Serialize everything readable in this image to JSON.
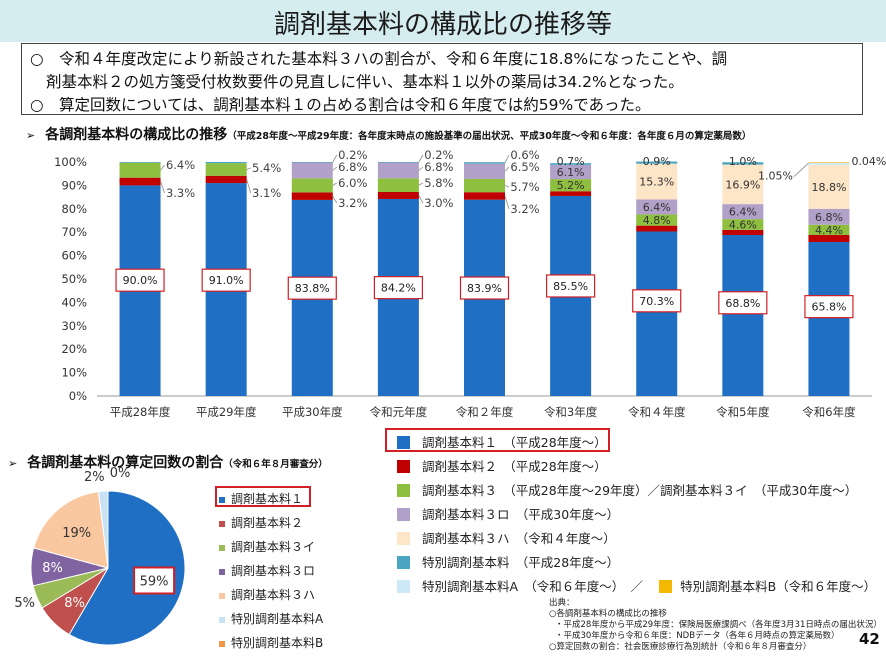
{
  "header": {
    "title": "調剤基本料の構成比の推移等"
  },
  "summary": {
    "line1": "○　令和４年度改定により新設された基本料３ハの割合が、令和６年度に18.8%になったことや、調",
    "line2": "剤基本料２の処方箋受付枚数要件の見直しに伴い、基本料１以外の薬局は34.2%となった。",
    "line3": "○　算定回数については、調剤基本料１の占める割合は令和６年度では約59%であった。"
  },
  "section_main": {
    "marker": "➢",
    "heading": "各調剤基本料の構成比の推移",
    "note": "（平成28年度～平成29年度：各年度末時点の施設基準の届出状況、平成30年度～令和６年度：各年度６月の算定薬局数）"
  },
  "section_pie": {
    "marker": "➢",
    "heading": "各調剤基本料の算定回数の割合",
    "note": "（令和６年８月審査分）"
  },
  "colors": {
    "kihon1": "#1f6fc5",
    "kihon2": "#c00000",
    "kihon3": "#8ebf3f",
    "kihon3ro": "#b1a0c7",
    "kihon3ha": "#fde5c8",
    "tokubetsu": "#4aa6c0",
    "tokubetsuA": "#cde9f7",
    "tokubetsuB": "#f5b800",
    "pie_kihon2": "#c0504d",
    "pie_kihon3i": "#9bbb59",
    "pie_kihon3ro": "#8064a2",
    "pie_kihon3ha": "#fac8a0",
    "pie_tokubetsuA": "#c6e2f4",
    "pie_tokubetsuB": "#f79646",
    "highlight": "#d21f26"
  },
  "legend": [
    {
      "key": "kihon1",
      "label": "調剤基本料１　（平成28年度～）"
    },
    {
      "key": "kihon2",
      "label": "調剤基本料２　（平成28年度～）"
    },
    {
      "key": "kihon3",
      "label": "調剤基本料３　（平成28年度～29年度）／調剤基本料３イ　（平成30年度～）"
    },
    {
      "key": "kihon3ro",
      "label": "調剤基本料３ロ　（平成30年度～）"
    },
    {
      "key": "kihon3ha",
      "label": "調剤基本料３ハ　（令和４年度～）"
    },
    {
      "key": "tokubetsu",
      "label": "特別調剤基本料　（平成28年度～）"
    },
    {
      "key": "tokubetsuA",
      "label": "特別調剤基本料A　（令和６年度～）　／"
    },
    {
      "key": "tokubetsuB",
      "label": "特別調剤基本料B（令和６年度～）"
    }
  ],
  "chart_data": [
    {
      "type": "bar",
      "stacked": true,
      "title": "",
      "categories": [
        "平成28年度",
        "平成29年度",
        "平成30年度",
        "令和元年度",
        "令和２年度",
        "令和3年度",
        "令和４年度",
        "令和5年度",
        "令和6年度"
      ],
      "yticks": [
        "0%",
        "10%",
        "20%",
        "30%",
        "40%",
        "50%",
        "60%",
        "70%",
        "80%",
        "90%",
        "100%"
      ],
      "ylim": [
        0,
        100
      ],
      "grid": false,
      "series": [
        {
          "key": "kihon1",
          "name": "調剤基本料１",
          "values": [
            90.0,
            91.0,
            83.8,
            84.2,
            83.9,
            85.5,
            70.3,
            68.8,
            65.8
          ]
        },
        {
          "key": "kihon2",
          "name": "調剤基本料２",
          "values": [
            3.3,
            3.1,
            3.2,
            3.0,
            3.2,
            2.0,
            2.5,
            2.2,
            3.0
          ]
        },
        {
          "key": "kihon3",
          "name": "調剤基本料３イ",
          "values": [
            6.4,
            5.4,
            6.0,
            5.8,
            5.7,
            5.2,
            4.8,
            4.6,
            4.4
          ]
        },
        {
          "key": "kihon3ro",
          "name": "調剤基本料３ロ",
          "values": [
            0,
            0,
            6.8,
            6.8,
            6.5,
            6.1,
            6.4,
            6.4,
            6.8
          ]
        },
        {
          "key": "kihon3ha",
          "name": "調剤基本料３ハ",
          "values": [
            0,
            0,
            0,
            0,
            0,
            0,
            15.3,
            16.9,
            18.8
          ]
        },
        {
          "key": "tokubetsu",
          "name": "特別調剤基本料",
          "values": [
            0.3,
            0.5,
            0.2,
            0.2,
            0.6,
            0.7,
            0.9,
            1.0,
            0
          ]
        },
        {
          "key": "tokubetsuA",
          "name": "特別調剤基本料A",
          "values": [
            0,
            0,
            0,
            0,
            0,
            0,
            0,
            0,
            1.05
          ]
        },
        {
          "key": "tokubetsuB",
          "name": "特別調剤基本料B",
          "values": [
            0,
            0,
            0,
            0,
            0,
            0,
            0,
            0,
            0.04
          ]
        }
      ],
      "data_labels": {
        "kihon1": [
          "90.0%",
          "91.0%",
          "83.8%",
          "84.2%",
          "83.9%",
          "85.5%",
          "70.3%",
          "68.8%",
          "65.8%"
        ],
        "kihon2": [
          "3.3%",
          "3.1%",
          "3.2%",
          "3.0%",
          "3.2%",
          "",
          "",
          "",
          ""
        ],
        "kihon3": [
          "6.4%",
          "5.4%",
          "6.0%",
          "5.8%",
          "5.7%",
          "5.2%",
          "4.8%",
          "4.6%",
          "4.4%"
        ],
        "kihon3ro": [
          "",
          "",
          "6.8%",
          "6.8%",
          "6.5%",
          "6.1%",
          "6.4%",
          "6.4%",
          "6.8%"
        ],
        "kihon3ha": [
          "",
          "",
          "",
          "",
          "",
          "",
          "15.3%",
          "16.9%",
          "18.8%"
        ],
        "tokubetsu": [
          "",
          "",
          "0.2%",
          "0.2%",
          "0.6%",
          "0.7%",
          "0.9%",
          "1.0%",
          ""
        ],
        "tokubetsuA": [
          "",
          "",
          "",
          "",
          "",
          "",
          "",
          "",
          "1.05%"
        ],
        "tokubetsuB": [
          "",
          "",
          "",
          "",
          "",
          "",
          "",
          "",
          "0.04%"
        ]
      }
    },
    {
      "type": "pie",
      "title": "",
      "slices": [
        {
          "key": "kihon1",
          "label": "調剤基本料１",
          "value": 59,
          "text": "59%"
        },
        {
          "key": "kihon2",
          "label": "調剤基本料２",
          "value": 8,
          "text": "8%"
        },
        {
          "key": "kihon3i",
          "label": "調剤基本料３イ",
          "value": 5,
          "text": "5%"
        },
        {
          "key": "kihon3ro",
          "label": "調剤基本料３ロ",
          "value": 8,
          "text": "8%"
        },
        {
          "key": "kihon3ha",
          "label": "調剤基本料３ハ",
          "value": 19,
          "text": "19%"
        },
        {
          "key": "tokubetsuA",
          "label": "特別調剤基本料A",
          "value": 2,
          "text": "2%"
        },
        {
          "key": "tokubetsuB",
          "label": "特別調剤基本料B",
          "value": 0,
          "text": "0%"
        }
      ]
    }
  ],
  "source": {
    "heading": "出典：",
    "l1": "○各調剤基本料の構成比の推移",
    "l2": "・平成28年度から平成29年度：保険局医療課調べ（各年度3月31日時点の届出状況）",
    "l3": "・平成30年度から令和６年度：NDBデータ（各年６月時点の算定薬局数）",
    "l4": "○算定回数の割合：社会医療診療行為別統計（令和６年８月審査分）"
  },
  "page_number": "42"
}
